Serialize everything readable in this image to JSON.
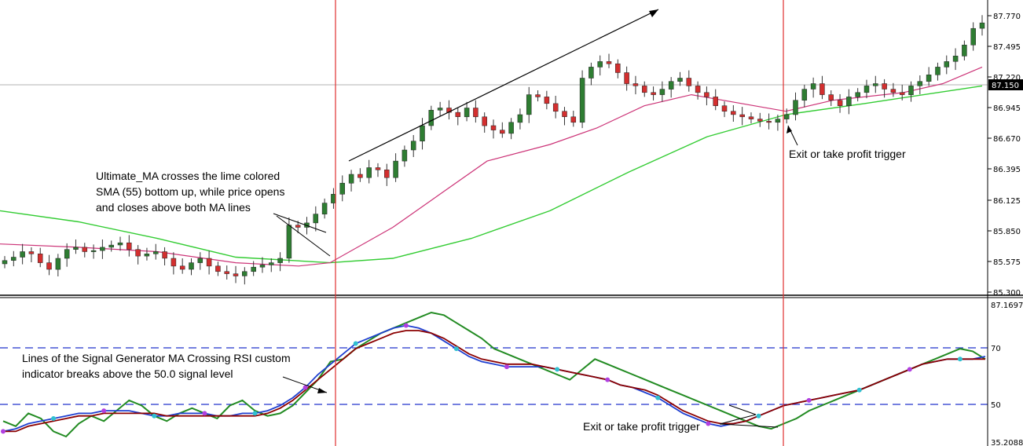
{
  "chart_data": [
    {
      "type": "candlestick",
      "name": "price",
      "ylim": [
        85.3,
        87.9
      ],
      "y_ticks": [
        "87.770",
        "87.495",
        "87.220",
        "86.945",
        "86.670",
        "86.395",
        "86.125",
        "85.850",
        "85.575",
        "85.300"
      ],
      "current_price": "87.150",
      "colors": {
        "up": "#2e7d32",
        "down": "#d32f2f",
        "sma55": "#33cc33",
        "ultimate_ma": "#cc3377",
        "signal_line": "#e03030",
        "hline": "#b0b0b0"
      },
      "close_path": [
        85.6,
        85.63,
        85.68,
        85.66,
        85.58,
        85.52,
        85.62,
        85.7,
        85.72,
        85.68,
        85.69,
        85.72,
        85.74,
        85.76,
        85.7,
        85.64,
        85.66,
        85.68,
        85.62,
        85.55,
        85.52,
        85.58,
        85.62,
        85.55,
        85.5,
        85.48,
        85.46,
        85.5,
        85.54,
        85.56,
        85.58,
        85.62,
        85.92,
        85.9,
        85.94,
        86.02,
        86.12,
        86.2,
        86.3,
        86.38,
        86.35,
        86.44,
        86.42,
        86.35,
        86.5,
        86.6,
        86.68,
        86.82,
        86.96,
        86.98,
        86.94,
        86.9,
        86.98,
        86.9,
        86.82,
        86.78,
        86.75,
        86.85,
        86.92,
        87.1,
        87.08,
        87.02,
        86.95,
        86.9,
        86.85,
        87.25,
        87.35,
        87.4,
        87.38,
        87.3,
        87.2,
        87.18,
        87.12,
        87.1,
        87.15,
        87.22,
        87.25,
        87.18,
        87.12,
        87.08,
        87.0,
        86.95,
        86.92,
        86.9,
        86.88,
        86.86,
        86.85,
        86.88,
        86.92,
        87.05,
        87.15,
        87.2,
        87.1,
        87.05,
        87.0,
        87.08,
        87.12,
        87.18,
        87.2,
        87.15,
        87.12,
        87.1,
        87.18,
        87.22,
        87.28,
        87.35,
        87.4,
        87.45,
        87.55,
        87.7,
        87.75
      ],
      "sma55_curve": [
        [
          0,
          86.05
        ],
        [
          100,
          85.95
        ],
        [
          200,
          85.8
        ],
        [
          300,
          85.63
        ],
        [
          420,
          85.58
        ],
        [
          500,
          85.62
        ],
        [
          600,
          85.8
        ],
        [
          700,
          86.05
        ],
        [
          800,
          86.4
        ],
        [
          900,
          86.72
        ],
        [
          1000,
          86.92
        ],
        [
          1100,
          87.02
        ],
        [
          1250,
          87.18
        ]
      ],
      "ultimate_ma_curve": [
        [
          0,
          85.75
        ],
        [
          100,
          85.72
        ],
        [
          200,
          85.68
        ],
        [
          300,
          85.58
        ],
        [
          380,
          85.55
        ],
        [
          420,
          85.58
        ],
        [
          500,
          85.9
        ],
        [
          560,
          86.2
        ],
        [
          620,
          86.5
        ],
        [
          700,
          86.65
        ],
        [
          760,
          86.8
        ],
        [
          820,
          87.0
        ],
        [
          880,
          87.1
        ],
        [
          960,
          87.0
        ],
        [
          1000,
          86.95
        ],
        [
          1060,
          87.05
        ],
        [
          1150,
          87.12
        ],
        [
          1200,
          87.2
        ],
        [
          1250,
          87.35
        ]
      ],
      "annotations": [
        {
          "text": "Ultimate_MA crosses the lime colored"
        },
        {
          "text": "SMA (55) bottom up, while price opens"
        },
        {
          "text": "and closes above both MA lines"
        },
        {
          "text": "Exit or take profit trigger"
        }
      ]
    },
    {
      "type": "line",
      "name": "rsi_indicator",
      "ylim": [
        35.2088,
        87.1697
      ],
      "y_ticks": [
        "87.1697",
        "70",
        "50",
        "35.2088"
      ],
      "levels": [
        70,
        50
      ],
      "series": [
        {
          "color": "#228b22",
          "values": [
            44,
            42,
            47,
            45,
            40,
            38,
            43,
            46,
            44,
            48,
            52,
            50,
            46,
            44,
            47,
            49,
            47,
            45,
            50,
            52,
            48,
            46,
            47,
            50,
            55,
            60,
            67,
            68,
            72,
            75,
            78,
            80,
            82,
            84,
            86,
            85,
            82,
            79,
            76,
            72,
            70,
            68,
            66,
            64,
            62,
            60,
            64,
            68,
            66,
            64,
            62,
            60,
            58,
            56,
            54,
            52,
            50,
            48,
            46,
            44,
            42,
            41,
            43,
            45,
            48,
            50,
            52,
            54,
            56,
            58,
            60,
            62,
            64,
            66,
            68,
            70,
            72,
            71,
            68
          ]
        },
        {
          "color": "#1f3fd0",
          "values": [
            40,
            41,
            43,
            44,
            45,
            46,
            47,
            47,
            48,
            48,
            48,
            47,
            46,
            46,
            47,
            47,
            47,
            46,
            46,
            47,
            47,
            48,
            50,
            53,
            57,
            62,
            66,
            70,
            74,
            76,
            78,
            80,
            81,
            80,
            78,
            75,
            72,
            69,
            67,
            66,
            65,
            65,
            65,
            65,
            64,
            63,
            62,
            61,
            60,
            58,
            57,
            55,
            53,
            50,
            47,
            45,
            43,
            42,
            43,
            44,
            46,
            48,
            50,
            51,
            52,
            53,
            54,
            55,
            56,
            58,
            60,
            62,
            64,
            66,
            67,
            68,
            68,
            68,
            69
          ]
        },
        {
          "color": "#8b0000",
          "values": [
            40,
            40,
            42,
            43,
            44,
            45,
            46,
            46,
            47,
            47,
            47,
            47,
            47,
            46,
            46,
            46,
            46,
            46,
            46,
            46,
            46,
            47,
            49,
            52,
            56,
            60,
            64,
            68,
            72,
            74,
            76,
            78,
            79,
            79,
            78,
            76,
            73,
            70,
            68,
            67,
            66,
            66,
            66,
            65,
            64,
            63,
            62,
            61,
            60,
            58,
            57,
            56,
            54,
            51,
            48,
            46,
            44,
            43,
            43,
            44,
            46,
            48,
            50,
            51,
            52,
            53,
            54,
            55,
            56,
            58,
            60,
            62,
            64,
            66,
            67,
            68,
            68,
            68,
            68
          ]
        }
      ],
      "annotations": [
        {
          "text": "Lines of the Signal Generator MA Crossing RSI custom"
        },
        {
          "text": "indicator breaks above the 50.0 signal level"
        },
        {
          "text": "Exit or take profit trigger"
        }
      ]
    }
  ]
}
